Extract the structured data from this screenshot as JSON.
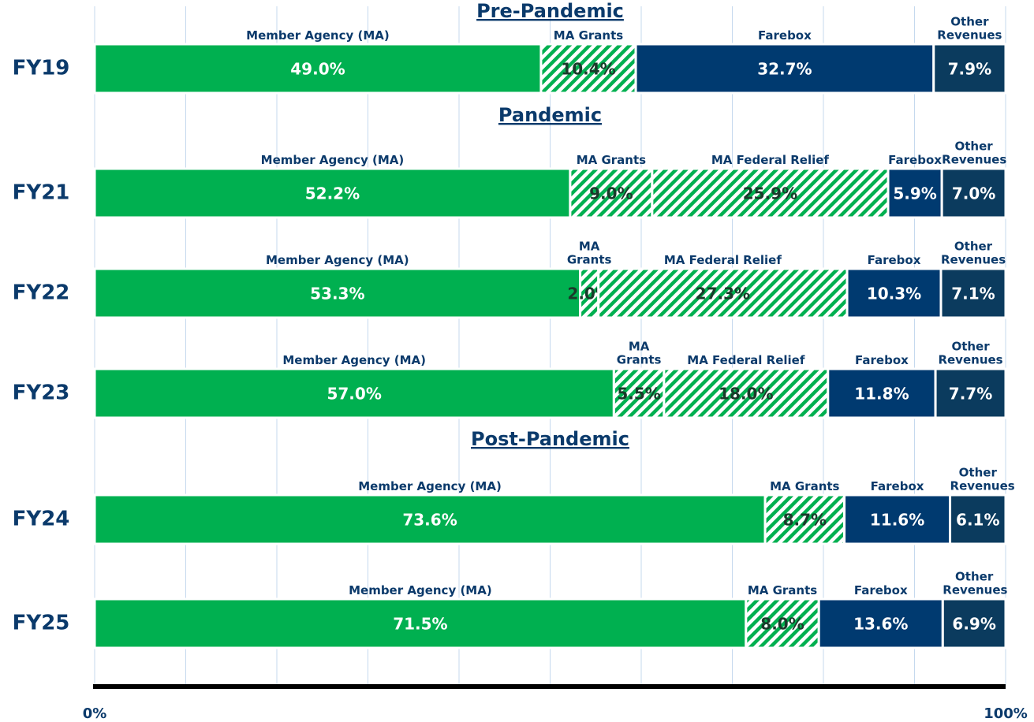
{
  "chart_data": {
    "type": "bar",
    "orientation": "horizontal",
    "stacked": true,
    "groups": [
      {
        "label": "Pre-Pandemic",
        "categories": [
          "FY19"
        ]
      },
      {
        "label": "Pandemic",
        "categories": [
          "FY21",
          "FY22",
          "FY23"
        ]
      },
      {
        "label": "Post-Pandemic",
        "categories": [
          "FY24",
          "FY25"
        ]
      }
    ],
    "series": [
      {
        "name": "Member Agency (MA)",
        "color": "#00b050",
        "pattern": "solid",
        "values": [
          49.0,
          52.2,
          53.3,
          57.0,
          73.6,
          71.5
        ],
        "value_labels": [
          "49.0%",
          "52.2%",
          "53.3%",
          "57.0%",
          "73.6%",
          "71.5%"
        ]
      },
      {
        "name": "MA Grants",
        "color": "#00b050",
        "pattern": "hatch",
        "values": [
          10.4,
          9.0,
          2.0,
          5.5,
          8.7,
          8.0
        ],
        "value_labels": [
          "10.4%",
          "9.0%",
          "2.0%",
          "5.5%",
          "8.7%",
          "8.0%"
        ]
      },
      {
        "name": "MA Federal Relief",
        "color": "#00b050",
        "pattern": "hatch",
        "values": [
          null,
          25.9,
          27.3,
          18.0,
          null,
          null
        ],
        "value_labels": [
          null,
          "25.9%",
          "27.3%",
          "18.0%",
          null,
          null
        ]
      },
      {
        "name": "Farebox",
        "color": "#003a70",
        "pattern": "solid",
        "values": [
          32.7,
          5.9,
          10.3,
          11.8,
          11.6,
          13.6
        ],
        "value_labels": [
          "32.7%",
          "5.9%",
          "10.3%",
          "11.8%",
          "11.6%",
          "13.6%"
        ]
      },
      {
        "name": "Other Revenues",
        "color": "#0b3b5e",
        "pattern": "solid",
        "values": [
          7.9,
          7.0,
          7.1,
          7.7,
          6.1,
          6.9
        ],
        "value_labels": [
          "7.9%",
          "7.0%",
          "7.1%",
          "7.7%",
          "6.1%",
          "6.9%"
        ]
      }
    ],
    "xlim": [
      0,
      100
    ],
    "xticks": [
      {
        "value": 0,
        "label": "0%"
      },
      {
        "value": 100,
        "label": "100%"
      }
    ],
    "minor_xticks": [
      10,
      20,
      30,
      40,
      50,
      60,
      70,
      80,
      90
    ],
    "grid": true
  }
}
